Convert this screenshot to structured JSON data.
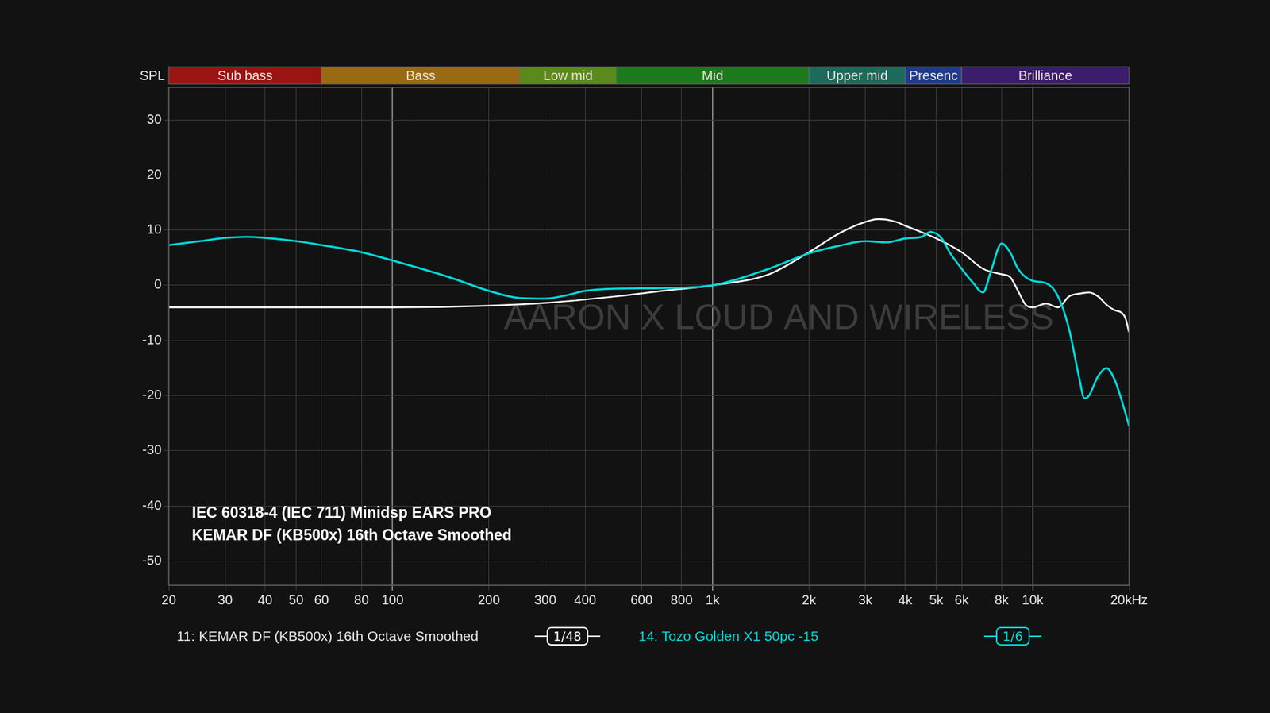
{
  "chart_data": {
    "type": "line",
    "y_label": "SPL",
    "watermark": "AARON X LOUD AND WIRELESS",
    "annotations": [
      "IEC 60318-4 (IEC 711) Minidsp EARS PRO",
      "KEMAR DF (KB500x) 16th Octave Smoothed"
    ],
    "bands": [
      {
        "label": "Sub bass",
        "from": 20,
        "to": 60,
        "color": "#9b1414"
      },
      {
        "label": "Bass",
        "from": 60,
        "to": 250,
        "color": "#9a6a12"
      },
      {
        "label": "Low mid",
        "from": 250,
        "to": 500,
        "color": "#5a8a1c"
      },
      {
        "label": "Mid",
        "from": 500,
        "to": 2000,
        "color": "#1c7a1c"
      },
      {
        "label": "Upper mid",
        "from": 2000,
        "to": 4000,
        "color": "#1c6a5c"
      },
      {
        "label": "Presenc",
        "from": 4000,
        "to": 6000,
        "color": "#1e3c8c"
      },
      {
        "label": "Brilliance",
        "from": 6000,
        "to": 20000,
        "color": "#3c1c6c"
      }
    ],
    "log": "x",
    "grid": true,
    "legend": "bottom",
    "xlim": [
      20,
      20000
    ],
    "xticks": [
      20,
      30,
      40,
      50,
      60,
      80,
      100,
      200,
      300,
      400,
      600,
      800,
      {
        "value": 1000,
        "label": "1k"
      },
      {
        "value": 2000,
        "label": "2k"
      },
      {
        "value": 3000,
        "label": "3k"
      },
      {
        "value": 4000,
        "label": "4k"
      },
      {
        "value": 5000,
        "label": "5k"
      },
      {
        "value": 6000,
        "label": "6k"
      },
      {
        "value": 8000,
        "label": "8k"
      },
      {
        "value": 10000,
        "label": "10k"
      },
      {
        "value": 20000,
        "label": "20kHz"
      }
    ],
    "ylim": [
      -54.4,
      35.9
    ],
    "yticks": [
      -50,
      -40,
      -30,
      -20,
      -10,
      0,
      10,
      20,
      30
    ],
    "series": [
      {
        "name": "11: KEMAR DF (KB500x) 16th Octave Smoothed",
        "smoothing": "1/48",
        "color": "#ffffff",
        "x": [
          20,
          50,
          100,
          200,
          300,
          500,
          700,
          1000,
          1500,
          2000,
          2500,
          3000,
          3300,
          3700,
          4000,
          5000,
          6000,
          7000,
          8000,
          8500,
          9000,
          9500,
          10000,
          11000,
          12000,
          13000,
          14000,
          15000,
          16000,
          17000,
          18000,
          19000,
          19500,
          20000
        ],
        "values": [
          -4,
          -4,
          -4,
          -3.7,
          -3.2,
          -2,
          -1,
          0,
          2,
          6,
          9.5,
          11.5,
          12,
          11.6,
          10.8,
          8.5,
          6,
          3,
          2,
          1.5,
          -1,
          -3.5,
          -4,
          -3.3,
          -4,
          -2,
          -1.5,
          -1.3,
          -2,
          -3.5,
          -4.5,
          -5,
          -6,
          -8.5
        ]
      },
      {
        "name": "14: Tozo Golden X1 50pc -15",
        "smoothing": "1/6",
        "color": "#00d8d8",
        "x": [
          20,
          25,
          30,
          35,
          40,
          50,
          60,
          80,
          100,
          150,
          200,
          250,
          300,
          350,
          400,
          500,
          700,
          1000,
          1500,
          2000,
          2500,
          3000,
          3500,
          4000,
          4500,
          4800,
          5200,
          5500,
          6000,
          6500,
          7000,
          7400,
          8000,
          8500,
          9000,
          10000,
          11000,
          12000,
          13000,
          14000,
          14500,
          15000,
          16000,
          17000,
          18000,
          19000,
          20000
        ],
        "values": [
          7.3,
          8,
          8.6,
          8.8,
          8.6,
          8,
          7.3,
          6,
          4.5,
          1.5,
          -1,
          -2.3,
          -2.4,
          -1.8,
          -1,
          -0.6,
          -0.5,
          0,
          3,
          5.8,
          7.2,
          8,
          7.8,
          8.5,
          8.8,
          9.7,
          8.5,
          6,
          3,
          0.5,
          -1.3,
          2.5,
          7.6,
          6,
          3,
          0.8,
          0.4,
          -2,
          -8,
          -17,
          -20.5,
          -20,
          -16.5,
          -15,
          -17,
          -21,
          -25.5
        ]
      }
    ]
  }
}
